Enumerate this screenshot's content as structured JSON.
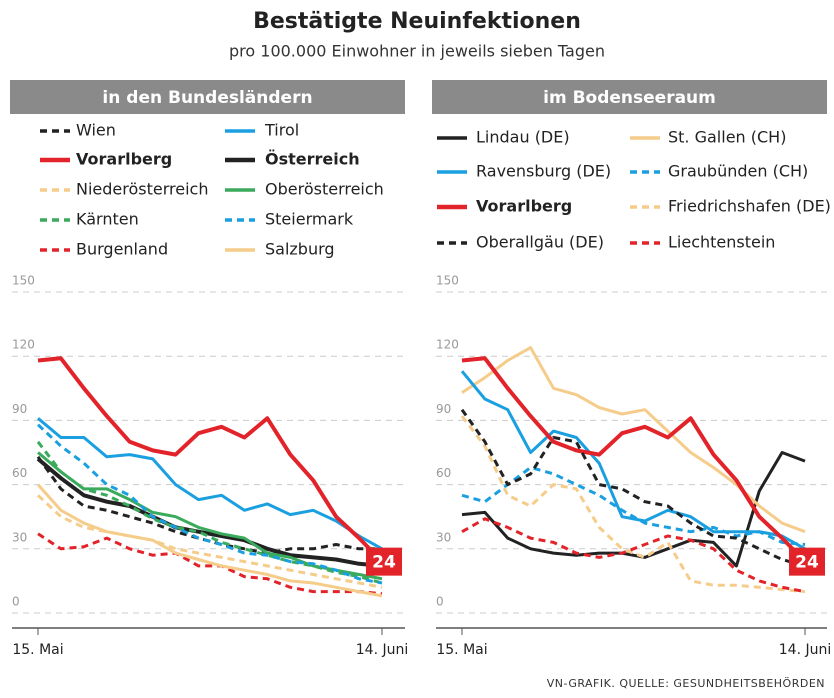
{
  "title": "Bestätigte Neuinfektionen",
  "subtitle": "pro 100.000 Einwohner in jeweils sieben Tagen",
  "source": "VN-GRAFIK. QUELLE: GESUNDHEITSBEHÖRDEN",
  "chart_data": [
    {
      "type": "line",
      "title": "in den Bundesländern",
      "badge": "24",
      "categories": [
        "15. Mai",
        null,
        null,
        null,
        null,
        null,
        null,
        null,
        null,
        null,
        null,
        null,
        null,
        null,
        null,
        "14. Juni"
      ],
      "ylim": [
        0,
        150
      ],
      "yticks": [
        0,
        30,
        60,
        90,
        120,
        150
      ],
      "grid": true,
      "series": [
        {
          "name": "Wien",
          "color": "#222222",
          "style": "dashed",
          "values": [
            73,
            58,
            50,
            48,
            45,
            42,
            38,
            35,
            32,
            30,
            28,
            30,
            30,
            32,
            30,
            30
          ]
        },
        {
          "name": "Tirol",
          "color": "#1a9fe0",
          "style": "solid",
          "values": [
            91,
            82,
            82,
            73,
            74,
            72,
            60,
            53,
            55,
            48,
            51,
            46,
            48,
            43,
            36,
            30
          ]
        },
        {
          "name": "Vorarlberg",
          "color": "#e3232a",
          "style": "solid",
          "bold": true,
          "values": [
            118,
            119,
            105,
            92,
            80,
            76,
            74,
            84,
            87,
            82,
            91,
            74,
            62,
            45,
            35,
            24
          ]
        },
        {
          "name": "Österreich",
          "color": "#222222",
          "style": "solid",
          "bold": true,
          "values": [
            72,
            63,
            55,
            52,
            50,
            45,
            40,
            38,
            36,
            34,
            30,
            27,
            26,
            25,
            23,
            22
          ]
        },
        {
          "name": "Niederösterreich",
          "color": "#f5cc8a",
          "style": "dashed",
          "values": [
            55,
            45,
            40,
            38,
            36,
            34,
            30,
            28,
            26,
            24,
            22,
            20,
            18,
            16,
            14,
            12
          ]
        },
        {
          "name": "Oberösterreich",
          "color": "#3aaa5c",
          "style": "solid",
          "values": [
            75,
            66,
            58,
            58,
            53,
            47,
            45,
            40,
            37,
            35,
            28,
            26,
            22,
            20,
            18,
            16
          ]
        },
        {
          "name": "Kärnten",
          "color": "#3aaa5c",
          "style": "dashed",
          "values": [
            80,
            66,
            58,
            55,
            50,
            44,
            40,
            38,
            33,
            30,
            27,
            24,
            22,
            19,
            17,
            14
          ]
        },
        {
          "name": "Steiermark",
          "color": "#1a9fe0",
          "style": "dashed",
          "values": [
            88,
            78,
            70,
            60,
            55,
            45,
            40,
            35,
            32,
            28,
            27,
            24,
            23,
            20,
            16,
            14
          ]
        },
        {
          "name": "Burgenland",
          "color": "#e3232a",
          "style": "dashed",
          "values": [
            37,
            30,
            31,
            35,
            30,
            27,
            28,
            22,
            22,
            17,
            16,
            12,
            10,
            10,
            10,
            9
          ]
        },
        {
          "name": "Salzburg",
          "color": "#f5cc8a",
          "style": "solid",
          "values": [
            60,
            48,
            42,
            38,
            36,
            34,
            28,
            25,
            22,
            20,
            18,
            15,
            14,
            12,
            10,
            8
          ]
        }
      ]
    },
    {
      "type": "line",
      "title": "im Bodenseeraum",
      "badge": "24",
      "categories": [
        "15. Mai",
        null,
        null,
        null,
        null,
        null,
        null,
        null,
        null,
        null,
        null,
        null,
        null,
        null,
        null,
        "14. Juni"
      ],
      "ylim": [
        0,
        150
      ],
      "yticks": [
        0,
        30,
        60,
        90,
        120,
        150
      ],
      "grid": true,
      "series": [
        {
          "name": "Lindau (DE)",
          "color": "#222222",
          "style": "solid",
          "values": [
            46,
            47,
            35,
            30,
            28,
            27,
            28,
            28,
            26,
            30,
            34,
            33,
            22,
            57,
            75,
            71
          ]
        },
        {
          "name": "St. Gallen (CH)",
          "color": "#f5cc8a",
          "style": "solid",
          "values": [
            103,
            110,
            118,
            124,
            105,
            102,
            96,
            93,
            95,
            85,
            75,
            68,
            60,
            50,
            42,
            38
          ]
        },
        {
          "name": "Ravensburg (DE)",
          "color": "#1a9fe0",
          "style": "solid",
          "values": [
            113,
            100,
            95,
            75,
            85,
            82,
            70,
            45,
            43,
            48,
            45,
            38,
            38,
            38,
            36,
            30
          ]
        },
        {
          "name": "Graubünden (CH)",
          "color": "#1a9fe0",
          "style": "dashed",
          "values": [
            55,
            52,
            60,
            68,
            65,
            60,
            55,
            48,
            42,
            40,
            38,
            40,
            36,
            38,
            33,
            32
          ]
        },
        {
          "name": "Vorarlberg",
          "color": "#e3232a",
          "style": "solid",
          "bold": true,
          "values": [
            118,
            119,
            105,
            92,
            80,
            76,
            74,
            84,
            87,
            82,
            91,
            74,
            62,
            45,
            35,
            24
          ]
        },
        {
          "name": "Friedrichshafen (DE)",
          "color": "#f5cc8a",
          "style": "dashed",
          "values": [
            92,
            78,
            55,
            50,
            60,
            58,
            40,
            30,
            26,
            33,
            15,
            13,
            13,
            12,
            11,
            10
          ]
        },
        {
          "name": "Oberallgäu (DE)",
          "color": "#222222",
          "style": "dashed",
          "values": [
            95,
            80,
            60,
            65,
            82,
            80,
            60,
            58,
            52,
            50,
            42,
            36,
            35,
            30,
            25,
            22
          ]
        },
        {
          "name": "Liechtenstein",
          "color": "#e3232a",
          "style": "dashed",
          "values": [
            38,
            44,
            40,
            35,
            33,
            28,
            26,
            28,
            32,
            36,
            34,
            30,
            20,
            15,
            12,
            10
          ]
        }
      ]
    }
  ]
}
